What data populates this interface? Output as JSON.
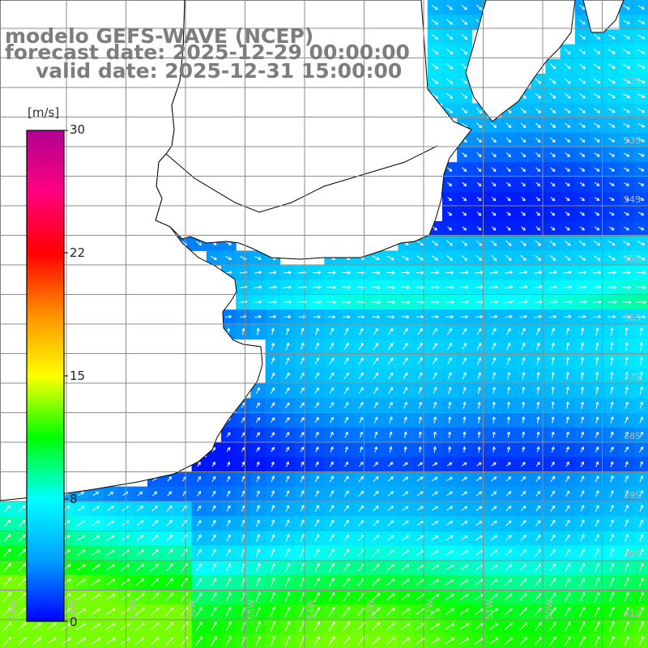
{
  "title": {
    "model": "modelo GEFS-WAVE (NCEP)",
    "forecast": "forecast date: 2025-12-29 00:00:00",
    "valid": "valid date: 2025-12-31 15:00:00"
  },
  "colorbar": {
    "unit": "[m/s]",
    "ticks": [
      "30",
      "22",
      "15",
      "8",
      "0"
    ],
    "tick_values": [
      30,
      22,
      15,
      8,
      0
    ],
    "range": [
      0,
      30
    ],
    "stops": [
      "#0000ff",
      "#00a0ff",
      "#00ffff",
      "#00ff00",
      "#ffff00",
      "#ff9000",
      "#ff0000",
      "#ff0080",
      "#b00090"
    ]
  },
  "map": {
    "lat_labels": [
      "32S",
      "33S",
      "34S",
      "35S",
      "36S",
      "37S",
      "38S",
      "39S",
      "40S",
      "41S"
    ],
    "lon_labels": [
      "59W",
      "58W",
      "57W",
      "56W",
      "55W",
      "54W",
      "53W",
      "52W",
      "51W",
      "50W"
    ],
    "colors": {
      "land": "#ffffff",
      "coastline": "#000000",
      "grid": "#8c8c8c",
      "arrows": "#ffffff",
      "title": "#7d7d7d"
    },
    "wind_arrows": "white wind direction arrows over ocean cells"
  }
}
